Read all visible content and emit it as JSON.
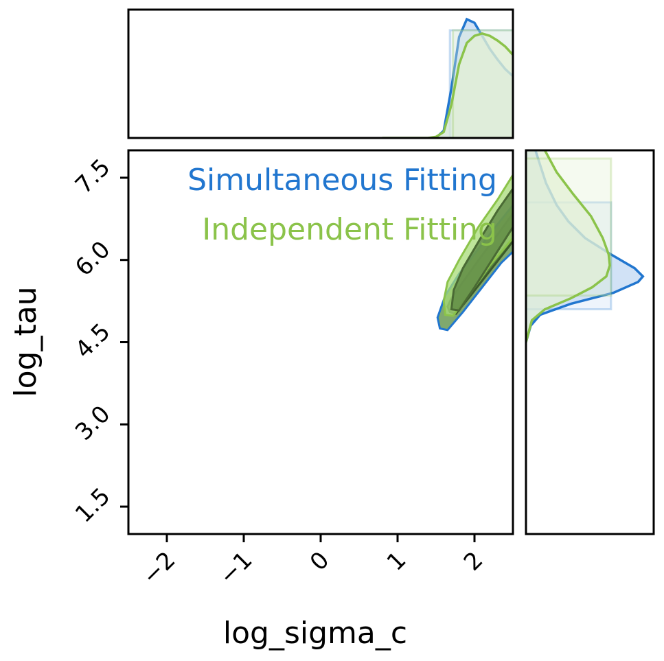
{
  "chart_data": {
    "type": "corner",
    "xlabel": "log_sigma_c",
    "ylabel": "log_tau",
    "xlim": [
      -2.5,
      2.5
    ],
    "ylim": [
      1.0,
      8.0
    ],
    "xticks": [
      -2,
      -1,
      0,
      1,
      2
    ],
    "xtick_labels": [
      "−2",
      "−1",
      "0",
      "1",
      "2"
    ],
    "yticks": [
      1.5,
      3.0,
      4.5,
      6.0,
      7.5
    ],
    "ytick_labels": [
      "1.5",
      "3.0",
      "4.5",
      "6.0",
      "7.5"
    ],
    "legend_placement": "upper-right",
    "series": [
      {
        "name": "Simultaneous Fitting",
        "color": "#2176cf",
        "fill_color": "#cfe0f6",
        "marginal_x": [
          [
            1.4,
            0
          ],
          [
            1.5,
            0.003
          ],
          [
            1.6,
            0.06
          ],
          [
            1.7,
            0.42
          ],
          [
            1.8,
            0.85
          ],
          [
            1.9,
            1.0
          ],
          [
            2.0,
            0.97
          ],
          [
            2.1,
            0.86
          ],
          [
            2.2,
            0.75
          ],
          [
            2.3,
            0.66
          ],
          [
            2.4,
            0.58
          ],
          [
            2.5,
            0.52
          ]
        ],
        "marginal_x_interval": [
          1.68,
          2.5
        ],
        "marginal_y": [
          [
            4.5,
            0.0
          ],
          [
            4.8,
            0.04
          ],
          [
            5.0,
            0.12
          ],
          [
            5.2,
            0.38
          ],
          [
            5.4,
            0.74
          ],
          [
            5.6,
            0.95
          ],
          [
            5.7,
            0.99
          ],
          [
            5.85,
            0.92
          ],
          [
            6.1,
            0.72
          ],
          [
            6.4,
            0.5
          ],
          [
            6.7,
            0.36
          ],
          [
            7.0,
            0.26
          ],
          [
            7.4,
            0.17
          ],
          [
            7.8,
            0.11
          ],
          [
            8.0,
            0.08
          ]
        ],
        "marginal_y_interval": [
          5.1,
          7.05
        ],
        "contour_outer": [
          [
            1.55,
            4.75
          ],
          [
            1.65,
            4.72
          ],
          [
            1.85,
            5.05
          ],
          [
            2.1,
            5.5
          ],
          [
            2.35,
            5.95
          ],
          [
            2.5,
            6.15
          ],
          [
            2.5,
            7.0
          ],
          [
            2.3,
            6.65
          ],
          [
            2.05,
            6.2
          ],
          [
            1.8,
            5.75
          ],
          [
            1.62,
            5.35
          ],
          [
            1.52,
            4.95
          ]
        ],
        "contour_inner": [
          [
            1.68,
            5.05
          ],
          [
            1.76,
            5.02
          ],
          [
            1.95,
            5.35
          ],
          [
            2.2,
            5.8
          ],
          [
            2.45,
            6.25
          ],
          [
            2.5,
            6.35
          ],
          [
            2.5,
            6.85
          ],
          [
            2.32,
            6.5
          ],
          [
            2.08,
            6.05
          ],
          [
            1.85,
            5.6
          ],
          [
            1.7,
            5.3
          ],
          [
            1.65,
            5.15
          ]
        ]
      },
      {
        "name": "Independent Fitting",
        "color": "#8bc34a",
        "fill_color": "#e2f0d4",
        "marginal_x": [
          [
            0.8,
            0
          ],
          [
            1.4,
            0.0
          ],
          [
            1.5,
            0.01
          ],
          [
            1.6,
            0.05
          ],
          [
            1.7,
            0.28
          ],
          [
            1.8,
            0.62
          ],
          [
            1.9,
            0.8
          ],
          [
            2.0,
            0.86
          ],
          [
            2.1,
            0.88
          ],
          [
            2.2,
            0.86
          ],
          [
            2.3,
            0.82
          ],
          [
            2.4,
            0.77
          ],
          [
            2.5,
            0.7
          ]
        ],
        "marginal_x_interval": [
          1.72,
          2.5
        ],
        "marginal_y": [
          [
            4.5,
            0.0
          ],
          [
            4.9,
            0.05
          ],
          [
            5.1,
            0.16
          ],
          [
            5.3,
            0.38
          ],
          [
            5.5,
            0.56
          ],
          [
            5.7,
            0.68
          ],
          [
            5.9,
            0.71
          ],
          [
            6.1,
            0.7
          ],
          [
            6.4,
            0.65
          ],
          [
            6.8,
            0.55
          ],
          [
            7.2,
            0.4
          ],
          [
            7.6,
            0.26
          ],
          [
            8.0,
            0.16
          ]
        ],
        "marginal_y_interval": [
          5.35,
          7.85
        ],
        "contour_outer": [
          [
            1.62,
            5.0
          ],
          [
            1.72,
            4.98
          ],
          [
            1.95,
            5.4
          ],
          [
            2.2,
            5.9
          ],
          [
            2.5,
            6.4
          ],
          [
            2.5,
            7.55
          ],
          [
            2.3,
            7.1
          ],
          [
            2.05,
            6.6
          ],
          [
            1.8,
            6.0
          ],
          [
            1.65,
            5.6
          ],
          [
            1.6,
            5.25
          ]
        ],
        "contour_inner": [
          [
            1.7,
            5.1
          ],
          [
            1.8,
            5.08
          ],
          [
            2.0,
            5.5
          ],
          [
            2.25,
            6.05
          ],
          [
            2.5,
            6.6
          ],
          [
            2.5,
            7.3
          ],
          [
            2.3,
            6.9
          ],
          [
            2.08,
            6.4
          ],
          [
            1.85,
            5.85
          ],
          [
            1.73,
            5.45
          ]
        ]
      }
    ]
  }
}
